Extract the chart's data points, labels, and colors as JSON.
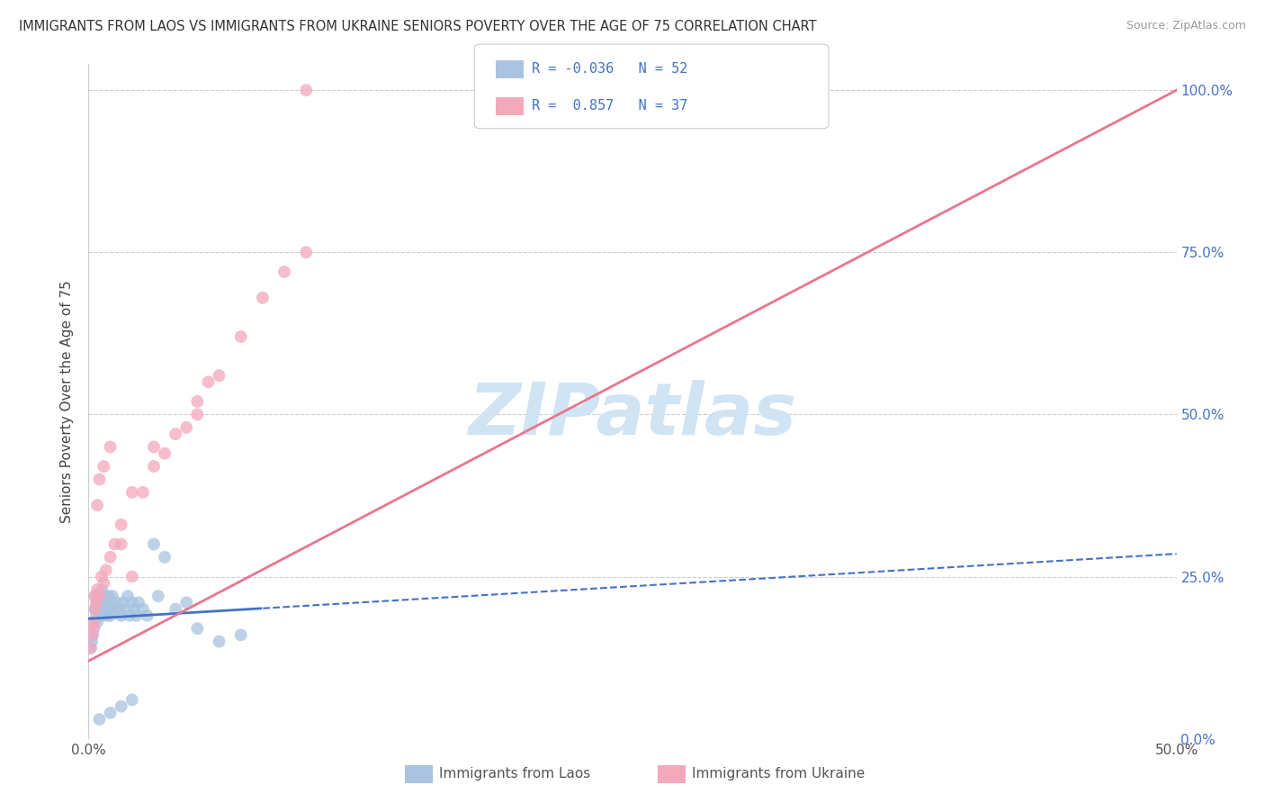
{
  "title": "IMMIGRANTS FROM LAOS VS IMMIGRANTS FROM UKRAINE SENIORS POVERTY OVER THE AGE OF 75 CORRELATION CHART",
  "source": "Source: ZipAtlas.com",
  "ylabel": "Seniors Poverty Over the Age of 75",
  "y_tick_labels": [
    "0.0%",
    "25.0%",
    "50.0%",
    "75.0%",
    "100.0%"
  ],
  "y_tick_values": [
    0,
    25,
    50,
    75,
    100
  ],
  "x_tick_labels": [
    "0.0%",
    "50.0%"
  ],
  "x_tick_values": [
    0,
    50
  ],
  "x_range": [
    0,
    50
  ],
  "y_range": [
    0,
    104
  ],
  "legend_label1": "Immigrants from Laos",
  "legend_label2": "Immigrants from Ukraine",
  "R1": -0.036,
  "N1": 52,
  "R2": 0.857,
  "N2": 37,
  "color_laos": "#a8c4e0",
  "color_ukraine": "#f4a8bc",
  "color_laos_line": "#4472c4",
  "color_ukraine_line": "#e8768e",
  "background_color": "#ffffff",
  "watermark_text": "ZIPatlas",
  "watermark_color": "#d0e4f4",
  "laos_x": [
    0.1,
    0.15,
    0.2,
    0.2,
    0.25,
    0.3,
    0.3,
    0.35,
    0.4,
    0.4,
    0.45,
    0.5,
    0.5,
    0.55,
    0.6,
    0.6,
    0.65,
    0.7,
    0.75,
    0.8,
    0.85,
    0.9,
    0.95,
    1.0,
    1.0,
    1.1,
    1.2,
    1.3,
    1.4,
    1.5,
    1.6,
    1.7,
    1.8,
    1.9,
    2.0,
    2.1,
    2.2,
    2.3,
    2.5,
    2.7,
    3.0,
    3.2,
    3.5,
    4.0,
    4.5,
    5.0,
    6.0,
    7.0,
    0.5,
    1.0,
    1.5,
    2.0
  ],
  "laos_y": [
    14,
    15,
    16,
    18,
    17,
    20,
    22,
    19,
    18,
    21,
    20,
    19,
    22,
    21,
    20,
    23,
    19,
    22,
    20,
    21,
    19,
    22,
    20,
    21,
    19,
    22,
    20,
    21,
    20,
    19,
    21,
    20,
    22,
    19,
    21,
    20,
    19,
    21,
    20,
    19,
    30,
    22,
    28,
    20,
    21,
    17,
    15,
    16,
    3,
    4,
    5,
    6
  ],
  "ukraine_x": [
    0.1,
    0.15,
    0.2,
    0.25,
    0.3,
    0.3,
    0.35,
    0.4,
    0.5,
    0.6,
    0.7,
    0.8,
    1.0,
    1.2,
    1.5,
    2.0,
    2.5,
    3.0,
    3.5,
    4.0,
    4.5,
    5.0,
    5.5,
    6.0,
    7.0,
    8.0,
    9.0,
    10.0,
    0.4,
    0.5,
    0.7,
    1.0,
    1.5,
    2.0,
    3.0,
    5.0,
    10.0
  ],
  "ukraine_y": [
    14,
    16,
    17,
    18,
    20,
    22,
    21,
    23,
    22,
    25,
    24,
    26,
    28,
    30,
    33,
    38,
    38,
    42,
    44,
    47,
    48,
    52,
    55,
    56,
    62,
    68,
    72,
    75,
    36,
    40,
    42,
    45,
    30,
    25,
    45,
    50,
    100
  ],
  "laos_solid_max_x": 8.0,
  "ukraine_line_intercept": 12.0,
  "ukraine_line_slope": 1.76
}
